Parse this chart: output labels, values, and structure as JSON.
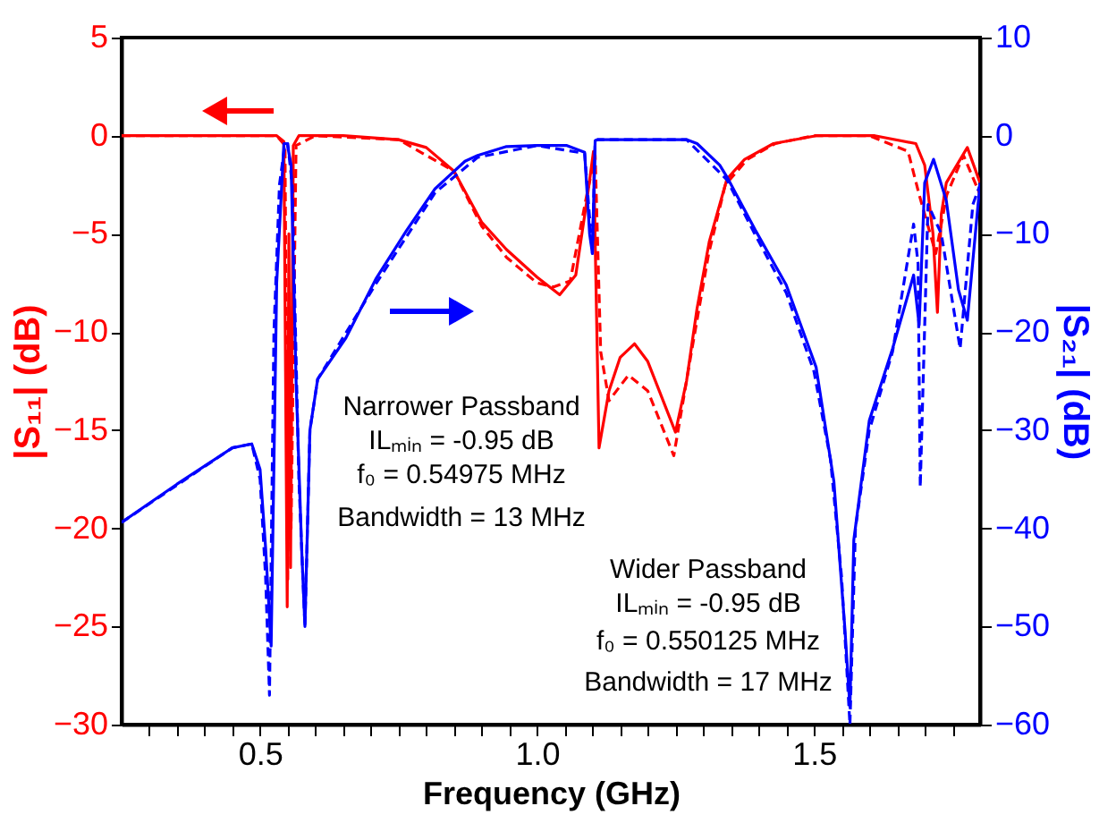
{
  "chart_data": {
    "type": "line",
    "xlabel": "Frequency (GHz)",
    "ylabel": "|S₁₁| (dB)",
    "y2label": "|S₂₁| (dB)",
    "xlim": [
      0.25,
      1.8
    ],
    "xticks": [
      {
        "value": 0.3,
        "label": null
      },
      {
        "value": 0.35,
        "label": null
      },
      {
        "value": 0.4,
        "label": null
      },
      {
        "value": 0.45,
        "label": null
      },
      {
        "value": 0.5,
        "label": "0.5"
      },
      {
        "value": 0.55,
        "label": null
      },
      {
        "value": 0.6,
        "label": null
      },
      {
        "value": 0.65,
        "label": null
      },
      {
        "value": 0.7,
        "label": null
      },
      {
        "value": 0.75,
        "label": null
      },
      {
        "value": 0.8,
        "label": null
      },
      {
        "value": 0.85,
        "label": null
      },
      {
        "value": 0.9,
        "label": null
      },
      {
        "value": 0.95,
        "label": null
      },
      {
        "value": 1.0,
        "label": "1.0"
      },
      {
        "value": 1.05,
        "label": null
      },
      {
        "value": 1.1,
        "label": null
      },
      {
        "value": 1.15,
        "label": null
      },
      {
        "value": 1.2,
        "label": null
      },
      {
        "value": 1.25,
        "label": null
      },
      {
        "value": 1.3,
        "label": null
      },
      {
        "value": 1.35,
        "label": null
      },
      {
        "value": 1.4,
        "label": null
      },
      {
        "value": 1.45,
        "label": null
      },
      {
        "value": 1.5,
        "label": "1.5"
      },
      {
        "value": 1.55,
        "label": null
      },
      {
        "value": 1.6,
        "label": null
      },
      {
        "value": 1.65,
        "label": null
      },
      {
        "value": 1.7,
        "label": null
      },
      {
        "value": 1.75,
        "label": null
      }
    ],
    "ylim": [
      -30,
      5
    ],
    "yticks": [
      5,
      0,
      -5,
      -10,
      -15,
      -20,
      -25,
      -30
    ],
    "y2lim": [
      -60,
      10
    ],
    "y2ticks": [
      10,
      0,
      -10,
      -20,
      -30,
      -40,
      -50,
      -60
    ],
    "grid": false,
    "marker": "none",
    "annotations": [
      "Narrower Passband",
      "ILₘᵢₙ = -0.95 dB",
      "f₀ = 0.54975 MHz",
      "Bandwidth = 13 MHz",
      "Wider Passband",
      "ILₘᵢₙ = -0.95 dB",
      "f₀ = 0.550125 MHz",
      "Bandwidth = 17 MHz"
    ],
    "series": [
      {
        "color": "#ff0000",
        "line_style": "solid",
        "x": [
          0.25,
          0.45,
          0.53,
          0.543,
          0.546,
          0.549,
          0.552,
          0.555,
          0.56,
          0.57,
          0.65,
          0.75,
          0.8,
          0.85,
          0.9,
          0.945,
          1.0,
          1.041,
          1.07,
          1.09,
          1.102,
          1.112,
          1.13,
          1.15,
          1.176,
          1.2,
          1.25,
          1.27,
          1.289,
          1.311,
          1.343,
          1.375,
          1.427,
          1.504,
          1.61,
          1.684,
          1.7,
          1.715,
          1.723,
          1.73,
          1.739,
          1.777,
          1.8
        ],
        "values": [
          0,
          0,
          0,
          -0.3,
          -12,
          -24,
          -5,
          -22,
          -0.5,
          0,
          0,
          -0.2,
          -0.6,
          -1.8,
          -4.4,
          -5.8,
          -7.2,
          -8.1,
          -7.1,
          -3.3,
          -0.8,
          -15.9,
          -13,
          -11.3,
          -10.6,
          -11.5,
          -15.1,
          -12.5,
          -8.8,
          -5.4,
          -2.2,
          -1.2,
          -0.4,
          0,
          0,
          -0.4,
          -1.5,
          -5,
          -9.0,
          -4,
          -2.4,
          -0.6,
          -2.4
        ]
      },
      {
        "color": "#ff0000",
        "line_style": "dashed",
        "x": [
          0.25,
          0.53,
          0.545,
          0.55,
          0.553,
          0.556,
          0.565,
          0.6,
          0.75,
          0.85,
          0.9,
          0.945,
          1.0,
          1.03,
          1.06,
          1.09,
          1.105,
          1.115,
          1.13,
          1.165,
          1.2,
          1.247,
          1.279,
          1.31,
          1.34,
          1.38,
          1.43,
          1.5,
          1.6,
          1.67,
          1.69,
          1.72,
          1.74,
          1.77,
          1.8
        ],
        "values": [
          0,
          0,
          -0.5,
          -22.6,
          -8,
          -20,
          -0.5,
          0,
          -0.2,
          -1.8,
          -4.6,
          -6.2,
          -7.5,
          -7.7,
          -7.4,
          -3.0,
          -1.0,
          -11,
          -13.5,
          -12.2,
          -13,
          -16.3,
          -11,
          -6,
          -2.5,
          -1.2,
          -0.4,
          0,
          0,
          -0.8,
          -3,
          -6,
          -3,
          -1,
          -3
        ]
      },
      {
        "color": "#0000ff",
        "line_style": "solid",
        "axis": "y2",
        "x": [
          0.25,
          0.35,
          0.45,
          0.485,
          0.5,
          0.51,
          0.52,
          0.53,
          0.543,
          0.549,
          0.556,
          0.565,
          0.575,
          0.581,
          0.59,
          0.604,
          0.655,
          0.71,
          0.764,
          0.816,
          0.87,
          0.893,
          0.945,
          1.0,
          1.054,
          1.086,
          1.095,
          1.1,
          1.105,
          1.11,
          1.2,
          1.27,
          1.289,
          1.33,
          1.343,
          1.395,
          1.45,
          1.504,
          1.536,
          1.556,
          1.565,
          1.572,
          1.6,
          1.642,
          1.68,
          1.69,
          1.7,
          1.716,
          1.739,
          1.761,
          1.777,
          1.8
        ],
        "values": [
          -39.4,
          -35.5,
          -31.8,
          -31.4,
          -34,
          -42,
          -52,
          -15,
          -0.8,
          -0.8,
          -3,
          -25,
          -42,
          -50,
          -30,
          -24.8,
          -20.6,
          -14.5,
          -9.7,
          -5.4,
          -2.6,
          -2,
          -1.1,
          -1.0,
          -1.0,
          -1.7,
          -10,
          -12,
          -0.5,
          -0.4,
          -0.4,
          -0.4,
          -0.8,
          -3,
          -4.2,
          -9.7,
          -15.2,
          -23.6,
          -35.2,
          -50.3,
          -58.2,
          -41.2,
          -29,
          -21.7,
          -14.2,
          -19.3,
          -4.8,
          -2.4,
          -6.6,
          -15.7,
          -18.8,
          -4.8
        ]
      },
      {
        "color": "#0000ff",
        "line_style": "dashed",
        "axis": "y2",
        "x": [
          0.25,
          0.45,
          0.485,
          0.5,
          0.51,
          0.517,
          0.525,
          0.535,
          0.545,
          0.55,
          0.558,
          0.57,
          0.581,
          0.59,
          0.604,
          0.71,
          0.816,
          0.893,
          1.0,
          1.086,
          1.1,
          1.105,
          1.11,
          1.27,
          1.343,
          1.395,
          1.45,
          1.5,
          1.53,
          1.55,
          1.565,
          1.575,
          1.6,
          1.642,
          1.68,
          1.688,
          1.692,
          1.706,
          1.73,
          1.764,
          1.787,
          1.8
        ],
        "values": [
          -39.4,
          -31.8,
          -31.4,
          -35,
          -45,
          -57,
          -20,
          -5,
          -0.8,
          -0.8,
          -5,
          -35,
          -50,
          -30,
          -24.8,
          -15,
          -5.8,
          -2.2,
          -1.0,
          -1.8,
          -12,
          -0.5,
          -0.4,
          -0.4,
          -4.5,
          -10.2,
          -16,
          -24,
          -33,
          -45,
          -60,
          -40,
          -30,
          -22,
          -9,
          -13,
          -35.8,
          -7,
          -10,
          -21.7,
          -7,
          -5
        ]
      }
    ]
  }
}
